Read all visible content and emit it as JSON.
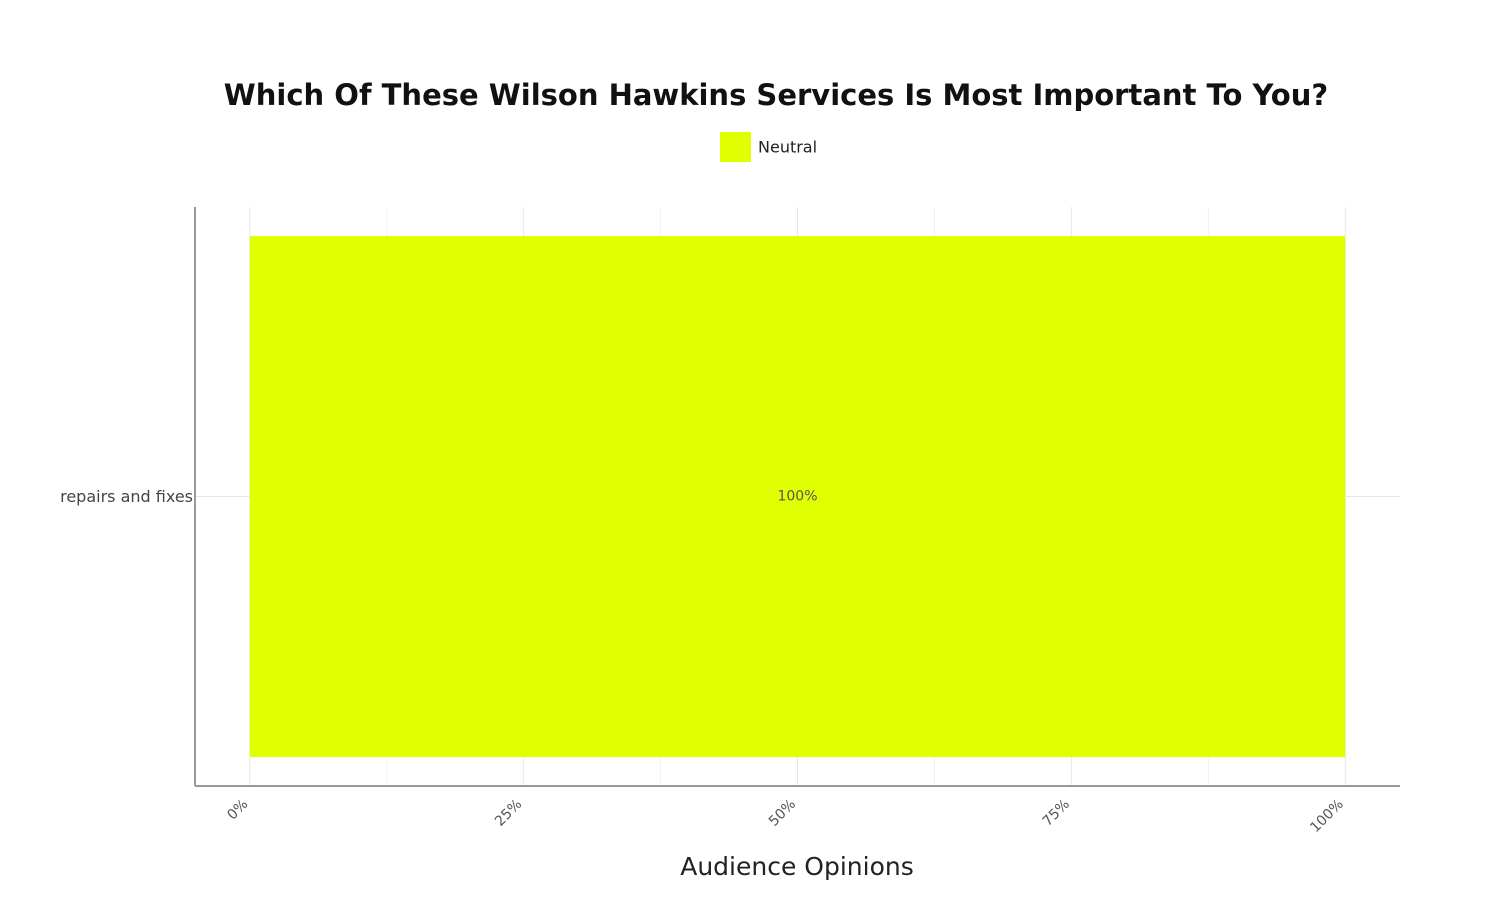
{
  "chart_data": {
    "type": "hbar",
    "title": "Which Of These Wilson Hawkins Services Is Most Important To You?",
    "x_label": "Audience Opinions",
    "categories": [
      "repairs and fixes"
    ],
    "series": [
      {
        "name": "Neutral",
        "color": "#e0ff00",
        "values": [
          100
        ],
        "value_labels": [
          "100%"
        ]
      }
    ],
    "xlim": [
      -5,
      105
    ],
    "xticks": [
      {
        "value": 0,
        "label": "0%"
      },
      {
        "value": 25,
        "label": "25%"
      },
      {
        "value": 50,
        "label": "50%"
      },
      {
        "value": 75,
        "label": "75%"
      },
      {
        "value": 100,
        "label": "100%"
      }
    ],
    "x_minor_ticks": [
      12.5,
      37.5,
      62.5,
      87.5
    ],
    "grid": true,
    "legend": "top"
  }
}
